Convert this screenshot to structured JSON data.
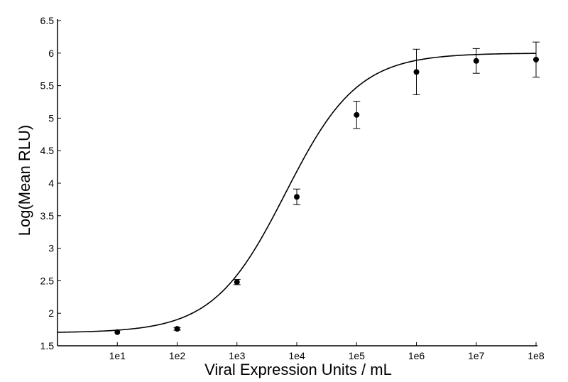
{
  "chart_data": {
    "type": "scatter",
    "title": "",
    "xlabel": "Viral Expression Units / mL",
    "ylabel": "Log(Mean RLU)",
    "x_scale": "log",
    "xlim": [
      1,
      100000000
    ],
    "ylim": [
      1.5,
      6.5
    ],
    "x_ticks": [
      10,
      100,
      1000,
      10000,
      100000,
      1000000,
      10000000,
      100000000
    ],
    "x_tick_labels": [
      "1e1",
      "1e2",
      "1e3",
      "1e4",
      "1e5",
      "1e6",
      "1e7",
      "1e8"
    ],
    "y_ticks": [
      1.5,
      2,
      2.5,
      3,
      3.5,
      4,
      4.5,
      5,
      5.5,
      6,
      6.5
    ],
    "y_tick_labels": [
      "1.5",
      "2",
      "2.5",
      "3",
      "3.5",
      "4",
      "4.5",
      "5",
      "5.5",
      "6",
      "6.5"
    ],
    "grid": false,
    "series": [
      {
        "kind": "points-with-error-bars",
        "points": [
          {
            "x": 10,
            "y": 1.71,
            "err": 0.0
          },
          {
            "x": 100,
            "y": 1.76,
            "err": 0.02
          },
          {
            "x": 1000,
            "y": 2.48,
            "err": 0.04
          },
          {
            "x": 10000,
            "y": 3.79,
            "err": 0.12
          },
          {
            "x": 100000,
            "y": 5.05,
            "err": 0.21
          },
          {
            "x": 1000000,
            "y": 5.71,
            "err": 0.35
          },
          {
            "x": 10000000,
            "y": 5.88,
            "err": 0.19
          },
          {
            "x": 100000000,
            "y": 5.9,
            "err": 0.27
          }
        ],
        "color": "#000000"
      },
      {
        "kind": "fitted-curve",
        "model": "4-parameter logistic",
        "bottom": 1.7,
        "top": 6.0,
        "ec50": 6500,
        "hill": 0.72,
        "color": "#000000"
      }
    ]
  }
}
